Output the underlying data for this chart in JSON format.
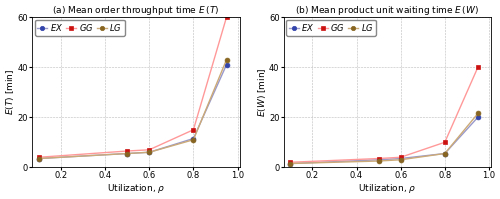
{
  "x": [
    0.1,
    0.5,
    0.6,
    0.8,
    0.95
  ],
  "left": {
    "title": "(a) Mean order throughput time $E\\,(T)$",
    "ylabel": "$E(T)$ [min]",
    "xlabel": "Utilization, $\\rho$",
    "ylim": [
      0,
      60
    ],
    "yticks": [
      0,
      20,
      40,
      60
    ],
    "EX": [
      3.5,
      5.5,
      6.0,
      11.5,
      41.0
    ],
    "GG": [
      4.0,
      6.5,
      7.0,
      15.0,
      60.0
    ],
    "LG": [
      3.5,
      5.5,
      6.0,
      11.0,
      43.0
    ]
  },
  "right": {
    "title": "(b) Mean product unit waiting time $E\\,(W)$",
    "ylabel": "$E(W)$ [min]",
    "xlabel": "Utilization, $\\rho$",
    "ylim": [
      0,
      60
    ],
    "yticks": [
      0,
      20,
      40,
      60
    ],
    "EX": [
      1.5,
      3.0,
      3.5,
      5.5,
      20.0
    ],
    "GG": [
      2.0,
      3.5,
      4.0,
      10.0,
      40.0
    ],
    "LG": [
      1.5,
      2.5,
      3.0,
      5.5,
      21.5
    ]
  },
  "line_colors": {
    "EX": "#9999CC",
    "GG": "#FF9999",
    "LG": "#CCAA77"
  },
  "marker_colors": {
    "EX": "#3344AA",
    "GG": "#CC1111",
    "LG": "#886622"
  },
  "markers": {
    "EX": "o",
    "GG": "s",
    "LG": "o"
  },
  "xticks": [
    0.2,
    0.4,
    0.6,
    0.8,
    1.0
  ],
  "xlim": [
    0.07,
    1.01
  ],
  "legend_labels": [
    "$EX$",
    "$GG$",
    "$LG$"
  ],
  "series": [
    "EX",
    "GG",
    "LG"
  ]
}
